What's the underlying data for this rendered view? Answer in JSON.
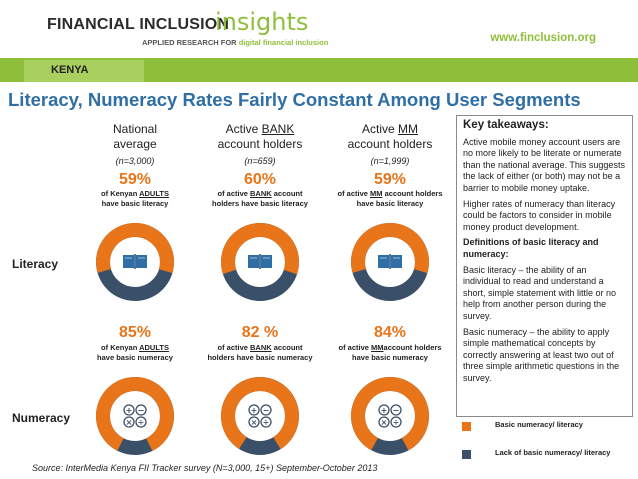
{
  "header": {
    "logo_main": "FINANCIAL INCLUSION",
    "logo_insights": "insights",
    "logo_sub_prefix": "APPLIED RESEARCH FOR",
    "logo_sub_highlight": "digital financial inclusion",
    "site_url": "www.finclusion.org"
  },
  "country": "KENYA",
  "title": "Literacy, Numeracy Rates Fairly Constant Among User Segments",
  "columns": [
    {
      "head_line1": "National",
      "head_line2": "average",
      "n": "(n=3,000)",
      "literacy_pct": "59%",
      "literacy_cap_pre": "of Kenyan ",
      "literacy_cap_u": "ADULTS",
      "literacy_cap_post": "have basic literacy",
      "numeracy_pct": "85%",
      "numeracy_cap_pre": "of Kenyan ",
      "numeracy_cap_u": "ADULTS",
      "numeracy_cap_post": "have basic numeracy"
    },
    {
      "head_line1_pre": "Active ",
      "head_line1_u": "BANK",
      "head_line2": "account holders",
      "n": "(n=659)",
      "literacy_pct": "60%",
      "literacy_cap_pre": "of active ",
      "literacy_cap_u": "BANK",
      "literacy_cap_post": " account holders have basic literacy",
      "numeracy_pct": "82 %",
      "numeracy_cap_pre": "of active ",
      "numeracy_cap_u": "BANK",
      "numeracy_cap_post": " account holders have basic numeracy"
    },
    {
      "head_line1_pre": "Active ",
      "head_line1_u": "MM",
      "head_line2": "account holders",
      "n": "(n=1,999)",
      "literacy_pct": "59%",
      "literacy_cap_pre": "of active ",
      "literacy_cap_u": "MM",
      "literacy_cap_post": " account holders have basic literacy",
      "numeracy_pct": "84%",
      "numeracy_cap_pre": "of active ",
      "numeracy_cap_u": "MM",
      "numeracy_cap_post": "account holders have basic numeracy"
    }
  ],
  "row_labels": {
    "literacy": "Literacy",
    "numeracy": "Numeracy"
  },
  "takeaways": {
    "heading": "Key takeaways:",
    "p1": "Active mobile money account users are no more likely to be literate or numerate than the national average. This suggests the lack of either (or both) may not be a barrier to mobile money uptake.",
    "p2": "Higher rates of numeracy than literacy could be factors to consider in mobile money product development.",
    "p3": "Definitions of basic literacy and numeracy:",
    "p4": "Basic literacy – the ability of an individual to read and understand a short, simple statement with little or no help from another person during the survey.",
    "p5": "Basic numeracy – the ability to apply simple mathematical concepts by correctly answering at least two out of three simple arithmetic questions in the survey."
  },
  "legend": {
    "items": [
      {
        "label": "Basic numeracy/ literacy",
        "color": "#e8751a"
      },
      {
        "label": "Lack of basic numeracy/ literacy",
        "color": "#3a5068"
      }
    ]
  },
  "colors": {
    "orange": "#e8751a",
    "slate": "#3a5068",
    "title_blue": "#2f6fa6",
    "green": "#8fbf3a"
  },
  "chart_data": {
    "type": "pie",
    "donuts": [
      {
        "segment": "National average",
        "measure": "Literacy",
        "value": 59
      },
      {
        "segment": "Active BANK account holders",
        "measure": "Literacy",
        "value": 60
      },
      {
        "segment": "Active MM account holders",
        "measure": "Literacy",
        "value": 59
      },
      {
        "segment": "National average",
        "measure": "Numeracy",
        "value": 85
      },
      {
        "segment": "Active BANK account holders",
        "measure": "Numeracy",
        "value": 82
      },
      {
        "segment": "Active MM account holders",
        "measure": "Numeracy",
        "value": 84
      }
    ]
  },
  "source": "Source: InterMedia Kenya FII Tracker survey (N=3,000, 15+) September-October 2013"
}
